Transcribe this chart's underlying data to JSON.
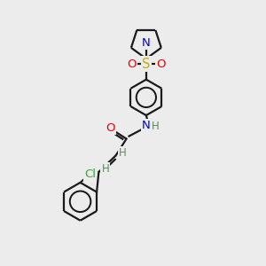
{
  "bg_color": "#ececec",
  "atom_colors": {
    "C": "#1a1a1a",
    "H": "#5a8a5a",
    "N": "#0000ee",
    "O": "#ee0000",
    "S": "#ccaa00",
    "Cl": "#3aaa3a"
  },
  "bond_color": "#1a1a1a",
  "bond_lw": 1.6,
  "aromatic_circle_color": "#1a1a1a",
  "font_size": 9.5,
  "figsize": [
    3.0,
    3.0
  ],
  "dpi": 100
}
